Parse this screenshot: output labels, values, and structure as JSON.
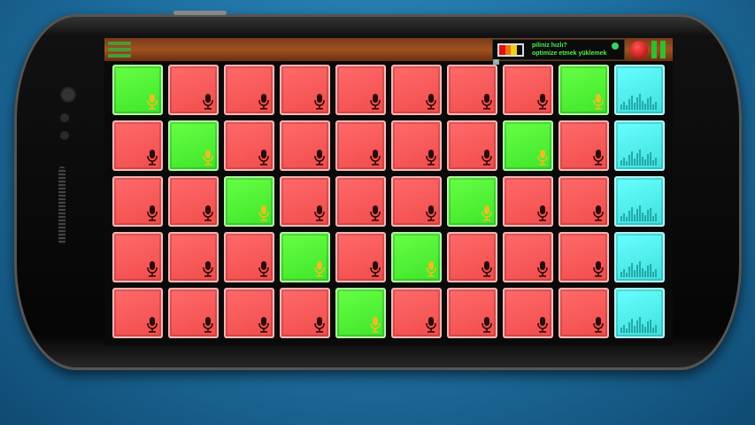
{
  "ad": {
    "line1": "piliniz hızlı?",
    "line2": "optimize etmek yüklemek",
    "battery_colors": [
      "#e01010",
      "#f07010",
      "#f0d010"
    ]
  },
  "colors": {
    "red": "#f24c4c",
    "green": "#3fe52a",
    "cyan": "#3ee0dc",
    "mic_active": "#e8c020",
    "mic_idle": "#2a0a0a"
  },
  "grid": {
    "rows": [
      [
        "green",
        "red",
        "red",
        "red",
        "red",
        "red",
        "red",
        "red",
        "green",
        "cyan"
      ],
      [
        "red",
        "green",
        "red",
        "red",
        "red",
        "red",
        "red",
        "green",
        "red",
        "cyan"
      ],
      [
        "red",
        "red",
        "green",
        "red",
        "red",
        "red",
        "green",
        "red",
        "red",
        "cyan"
      ],
      [
        "red",
        "red",
        "red",
        "green",
        "red",
        "green",
        "red",
        "red",
        "red",
        "cyan"
      ],
      [
        "red",
        "red",
        "red",
        "red",
        "green",
        "red",
        "red",
        "red",
        "red",
        "cyan"
      ]
    ]
  },
  "icons": {
    "pad": "microphone-icon",
    "cyan_pad": "equalizer-icon",
    "menu": "hamburger-menu-icon",
    "record": "record-icon",
    "pause": "pause-icon"
  }
}
